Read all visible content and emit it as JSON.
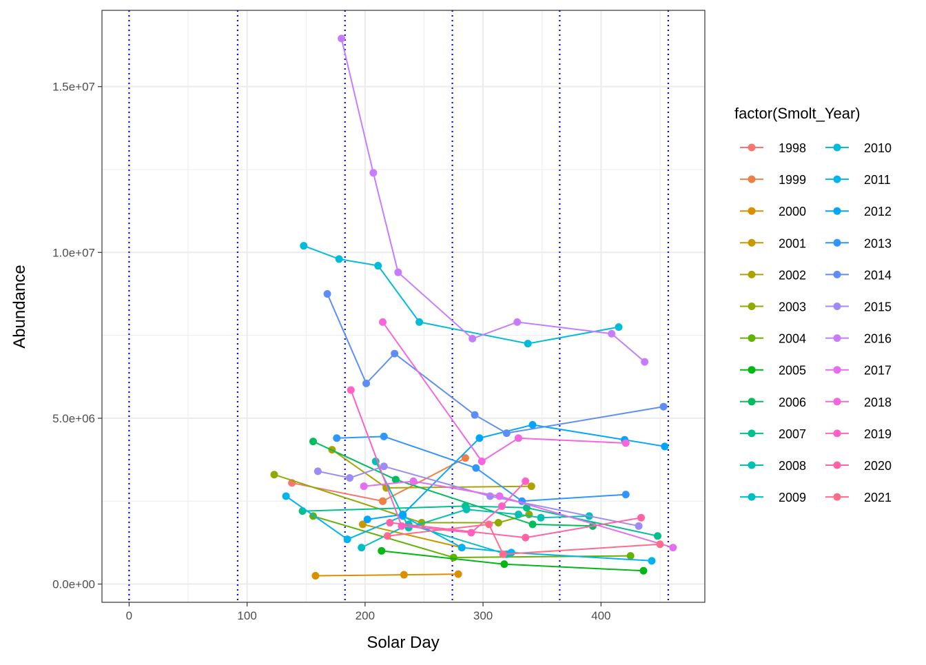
{
  "chart_data": {
    "type": "line",
    "xlabel": "Solar Day",
    "ylabel": "Abundance",
    "xlim": [
      -23,
      488
    ],
    "ylim": [
      -550000,
      17300000
    ],
    "x_ticks": [
      0,
      100,
      200,
      300,
      400
    ],
    "x_tick_labels": [
      "0",
      "100",
      "200",
      "300",
      "400"
    ],
    "y_ticks": [
      0,
      5000000,
      10000000,
      15000000
    ],
    "y_tick_labels": [
      "0.0e+00",
      "5.0e+06",
      "1.0e+07",
      "1.5e+07"
    ],
    "grid": true,
    "legend": {
      "title": "factor(Smolt_Year)",
      "position": "right",
      "columns": 2
    },
    "vlines": {
      "x": [
        0,
        92,
        183,
        274,
        365,
        457
      ],
      "color": "#0000ff",
      "style": "dotted"
    },
    "series": [
      {
        "name": "1998",
        "color": "#F8766D",
        "points": [
          [
            138,
            3050000
          ],
          [
            215,
            2500000
          ]
        ]
      },
      {
        "name": "1999",
        "color": "#EE8043",
        "points": [
          [
            215,
            2500000
          ],
          [
            285,
            3800000
          ]
        ]
      },
      {
        "name": "2000",
        "color": "#DB8E00",
        "points": [
          [
            158,
            250000
          ],
          [
            233,
            280000
          ],
          [
            279,
            300000
          ]
        ]
      },
      {
        "name": "2001",
        "color": "#C79800",
        "points": [
          [
            198,
            1800000
          ],
          [
            282,
            1100000
          ]
        ]
      },
      {
        "name": "2002",
        "color": "#AEA200",
        "points": [
          [
            172,
            4050000
          ],
          [
            218,
            2900000
          ],
          [
            341,
            2950000
          ]
        ]
      },
      {
        "name": "2003",
        "color": "#8FAA00",
        "points": [
          [
            123,
            3300000
          ],
          [
            248,
            1850000
          ],
          [
            313,
            1850000
          ],
          [
            339,
            2100000
          ]
        ]
      },
      {
        "name": "2004",
        "color": "#64B200",
        "points": [
          [
            156,
            2050000
          ],
          [
            275,
            800000
          ],
          [
            425,
            850000
          ]
        ]
      },
      {
        "name": "2005",
        "color": "#00B813",
        "points": [
          [
            214,
            1000000
          ],
          [
            318,
            600000
          ],
          [
            436,
            400000
          ]
        ]
      },
      {
        "name": "2006",
        "color": "#00BD5C",
        "points": [
          [
            156,
            4300000
          ],
          [
            226,
            3150000
          ],
          [
            342,
            1800000
          ],
          [
            393,
            1750000
          ]
        ]
      },
      {
        "name": "2007",
        "color": "#00C08E",
        "points": [
          [
            147,
            2200000
          ],
          [
            285,
            2350000
          ],
          [
            337,
            2300000
          ],
          [
            448,
            1450000
          ]
        ]
      },
      {
        "name": "2008",
        "color": "#00C1B2",
        "points": [
          [
            209,
            3700000
          ],
          [
            237,
            1700000
          ],
          [
            286,
            2250000
          ],
          [
            330,
            2100000
          ],
          [
            349,
            2000000
          ],
          [
            390,
            2050000
          ]
        ]
      },
      {
        "name": "2009",
        "color": "#00BFC4",
        "points": [
          [
            197,
            1100000
          ],
          [
            237,
            1800000
          ],
          [
            320,
            900000
          ]
        ]
      },
      {
        "name": "2010",
        "color": "#00BBDA",
        "points": [
          [
            148,
            10200000
          ],
          [
            178,
            9800000
          ],
          [
            211,
            9600000
          ],
          [
            246,
            7900000
          ],
          [
            338,
            7250000
          ],
          [
            415,
            7750000
          ]
        ]
      },
      {
        "name": "2011",
        "color": "#00B4EF",
        "points": [
          [
            133,
            2650000
          ],
          [
            185,
            1350000
          ],
          [
            232,
            2050000
          ],
          [
            282,
            1100000
          ],
          [
            324,
            950000
          ],
          [
            443,
            700000
          ]
        ]
      },
      {
        "name": "2012",
        "color": "#00A5FF",
        "points": [
          [
            202,
            1950000
          ],
          [
            232,
            2100000
          ],
          [
            297,
            4400000
          ],
          [
            342,
            4800000
          ],
          [
            420,
            4350000
          ],
          [
            454,
            4150000
          ]
        ]
      },
      {
        "name": "2013",
        "color": "#2F95FF",
        "points": [
          [
            176,
            4400000
          ],
          [
            216,
            4450000
          ],
          [
            294,
            3500000
          ],
          [
            333,
            2500000
          ],
          [
            421,
            2700000
          ]
        ]
      },
      {
        "name": "2014",
        "color": "#5E8EF5",
        "points": [
          [
            168,
            8750000
          ],
          [
            201,
            6050000
          ],
          [
            225,
            6950000
          ],
          [
            293,
            5100000
          ],
          [
            320,
            4550000
          ],
          [
            453,
            5350000
          ]
        ]
      },
      {
        "name": "2015",
        "color": "#9C8CF5",
        "points": [
          [
            160,
            3400000
          ],
          [
            187,
            3200000
          ],
          [
            216,
            3550000
          ],
          [
            306,
            2650000
          ],
          [
            432,
            1750000
          ]
        ]
      },
      {
        "name": "2016",
        "color": "#C77CFF",
        "points": [
          [
            180,
            16450000
          ],
          [
            207,
            12400000
          ],
          [
            228,
            9400000
          ],
          [
            291,
            7400000
          ],
          [
            329,
            7900000
          ],
          [
            409,
            7550000
          ],
          [
            437,
            6700000
          ]
        ]
      },
      {
        "name": "2017",
        "color": "#E46EEF",
        "points": [
          [
            199,
            2950000
          ],
          [
            241,
            3100000
          ],
          [
            314,
            2650000
          ],
          [
            461,
            1100000
          ]
        ]
      },
      {
        "name": "2018",
        "color": "#F566DE",
        "points": [
          [
            215,
            7900000
          ],
          [
            299,
            3700000
          ],
          [
            330,
            4400000
          ],
          [
            421,
            4250000
          ]
        ]
      },
      {
        "name": "2019",
        "color": "#FF61C4",
        "points": [
          [
            188,
            5850000
          ],
          [
            231,
            1750000
          ],
          [
            290,
            1550000
          ],
          [
            316,
            2350000
          ],
          [
            336,
            3100000
          ]
        ]
      },
      {
        "name": "2020",
        "color": "#FF63A6",
        "points": [
          [
            221,
            1850000
          ],
          [
            336,
            1400000
          ],
          [
            434,
            2000000
          ]
        ]
      },
      {
        "name": "2021",
        "color": "#FF6C8B",
        "points": [
          [
            219,
            1450000
          ],
          [
            305,
            1800000
          ],
          [
            317,
            900000
          ],
          [
            450,
            1200000
          ]
        ]
      }
    ]
  }
}
